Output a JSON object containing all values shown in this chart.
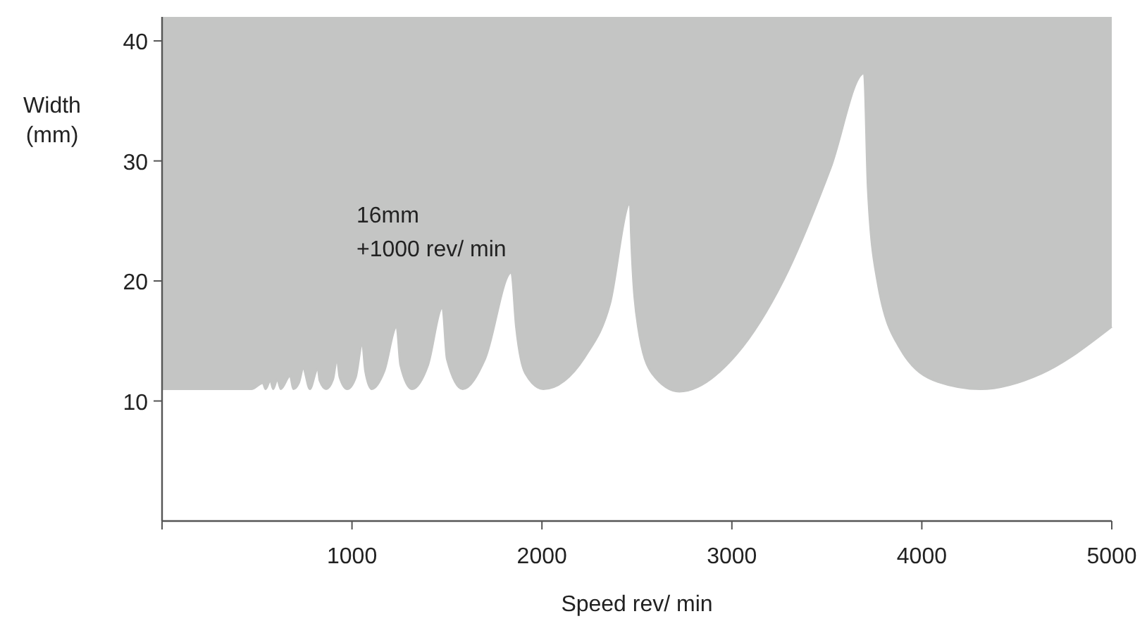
{
  "chart_data": {
    "type": "line",
    "xlabel": "Speed rev/ min",
    "ylabel": "Width\n(mm)",
    "annotations": [
      "16mm\n+1000 rev/ min"
    ],
    "x": [
      0,
      470,
      531,
      545,
      570,
      585,
      607,
      625,
      674,
      691,
      720,
      743,
      778,
      820,
      830,
      864,
      900,
      921,
      935,
      975,
      1020,
      1054,
      1070,
      1104,
      1170,
      1235,
      1255,
      1316,
      1400,
      1476,
      1500,
      1583,
      1700,
      1839,
      1864,
      1913,
      2007,
      2235,
      2358,
      2464,
      2469,
      2506,
      2580,
      2723,
      3024,
      3272,
      3519,
      3696,
      3716,
      3765,
      3889,
      4086,
      4309,
      4630,
      5000
    ],
    "series": [
      {
        "color": "#c4c5c4",
        "values": [
          11,
          11,
          11.5,
          11,
          11.7,
          11,
          11.8,
          11,
          12.1,
          11,
          11.5,
          12.7,
          11,
          12.7,
          11.7,
          11,
          11.8,
          13.5,
          12,
          11,
          12,
          14.8,
          12.5,
          11,
          12.5,
          16.2,
          13,
          11,
          13,
          17.8,
          13.5,
          11,
          13.5,
          20.7,
          16.2,
          12.3,
          11,
          13.9,
          18.1,
          26.5,
          24,
          16.2,
          12.3,
          10.8,
          13.9,
          20.1,
          29.4,
          37.3,
          27.8,
          20.1,
          14.3,
          11.6,
          11,
          12.3,
          16.2
        ],
        "lower": [
          11,
          11,
          11.5,
          11,
          11.7,
          11,
          11.8,
          11,
          12.1,
          11,
          11.5,
          12.7,
          11,
          12.7,
          11.7,
          11,
          11.8,
          13.5,
          12,
          11,
          12,
          14.8,
          12.5,
          11,
          12.5,
          16.2,
          13,
          11,
          13,
          17.8,
          13.5,
          11,
          13.5,
          20.7,
          16.2,
          12.3,
          11,
          13.9,
          18.1,
          26.5,
          24,
          16.2,
          12.3,
          10.8,
          13.9,
          20.1,
          29.4,
          37.3,
          27.8,
          20.1,
          14.3,
          11.6,
          11,
          12.3,
          16.2
        ],
        "upper": [
          42,
          42,
          42,
          42,
          42,
          42,
          42,
          42,
          42,
          42,
          42,
          42,
          42,
          42,
          42,
          42,
          42,
          42,
          42,
          42,
          42,
          42,
          42,
          42,
          42,
          42,
          42,
          42,
          42,
          42,
          42,
          42,
          42,
          42,
          42,
          42,
          42,
          42,
          42,
          42,
          42,
          42,
          42,
          42,
          42,
          42,
          42,
          42,
          42,
          42,
          42,
          42,
          42,
          42,
          42
        ]
      }
    ],
    "xlim": [
      0,
      5000
    ],
    "ylim": [
      0,
      42
    ],
    "xticks": [
      {
        "value": 0,
        "label": null
      },
      1000,
      2000,
      3000,
      4000,
      5000
    ],
    "yticks": [
      10,
      20,
      30,
      40
    ],
    "grid": false
  }
}
